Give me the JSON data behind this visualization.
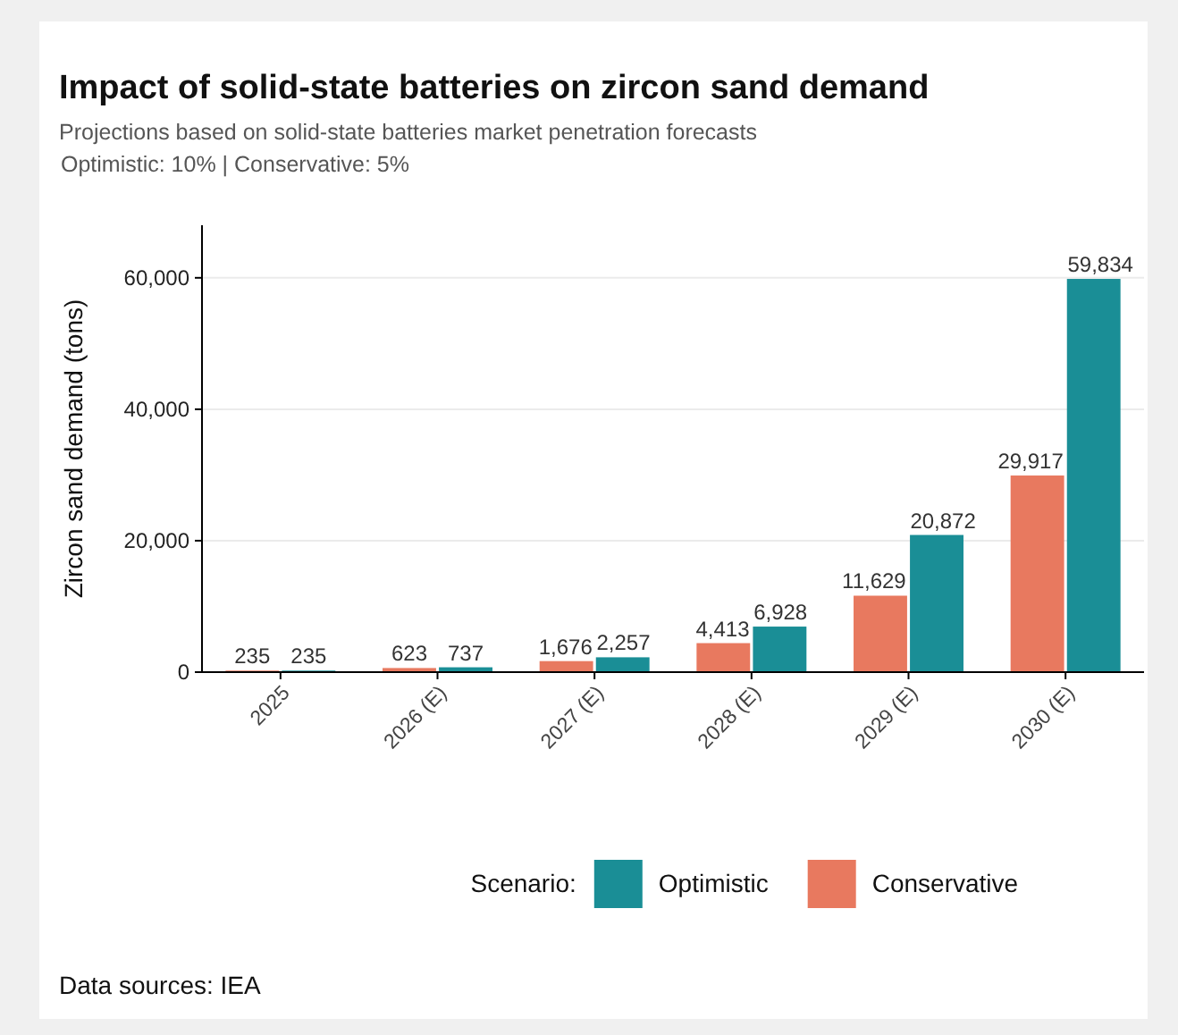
{
  "chart_data": {
    "type": "bar",
    "title": "Impact of solid-state batteries on zircon sand demand",
    "subtitle": "Projections based on solid-state batteries market penetration forecasts\nOptimistic: 10% | Conservative: 5%",
    "ylabel": "Zircon sand demand (tons)",
    "legend_title": "Scenario:",
    "categories": [
      "2025",
      "2026 (E)",
      "2027 (E)",
      "2028 (E)",
      "2029 (E)",
      "2030 (E)"
    ],
    "series": [
      {
        "name": "Conservative",
        "color": "#e8795f",
        "values": [
          235,
          623,
          1676,
          4413,
          11629,
          29917
        ],
        "value_labels": [
          "235",
          "623",
          "1,676",
          "4,413",
          "11,629",
          "29,917"
        ]
      },
      {
        "name": "Optimistic",
        "color": "#1a8e96",
        "values": [
          235,
          737,
          2257,
          6928,
          20872,
          59834
        ],
        "value_labels": [
          "235",
          "737",
          "2,257",
          "6,928",
          "20,872",
          "59,834"
        ]
      }
    ],
    "ylim": [
      0,
      68000
    ],
    "yticks": [
      {
        "value": 0,
        "label": "0"
      },
      {
        "value": 20000,
        "label": "20,000"
      },
      {
        "value": 40000,
        "label": "40,000"
      },
      {
        "value": 60000,
        "label": "60,000"
      }
    ],
    "grid": "y",
    "legend": "bottom",
    "annotations": [
      "Data sources: IEA"
    ]
  }
}
